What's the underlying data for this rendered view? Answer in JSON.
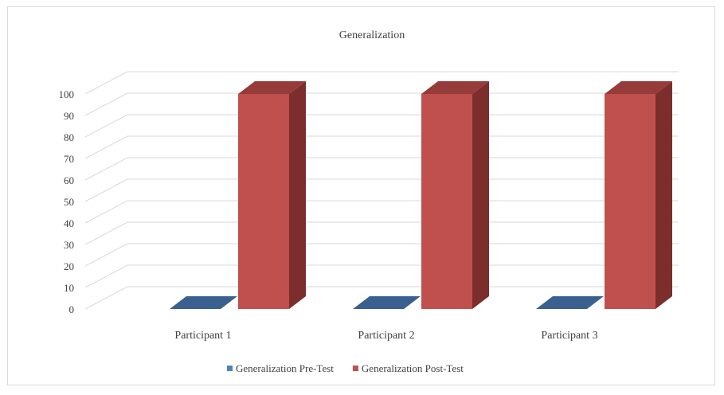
{
  "chart_data": {
    "type": "bar",
    "title": "Generalization",
    "categories": [
      "Participant 1",
      "Participant 2",
      "Participant 3"
    ],
    "series": [
      {
        "name": "Generalization Pre-Test",
        "values": [
          0,
          0,
          0
        ],
        "color": "#4f81bd",
        "side_color": "#385d8a",
        "top_color": "#3a6090"
      },
      {
        "name": "Generalization Post-Test",
        "values": [
          100,
          100,
          100
        ],
        "color": "#c0504d",
        "side_color": "#7b2e2c",
        "top_color": "#953b39"
      }
    ],
    "ylim": [
      0,
      100
    ],
    "yticks": [
      0,
      10,
      20,
      30,
      40,
      50,
      60,
      70,
      80,
      90,
      100
    ],
    "grid": true,
    "legend": "bottom",
    "style": "3d-column"
  }
}
